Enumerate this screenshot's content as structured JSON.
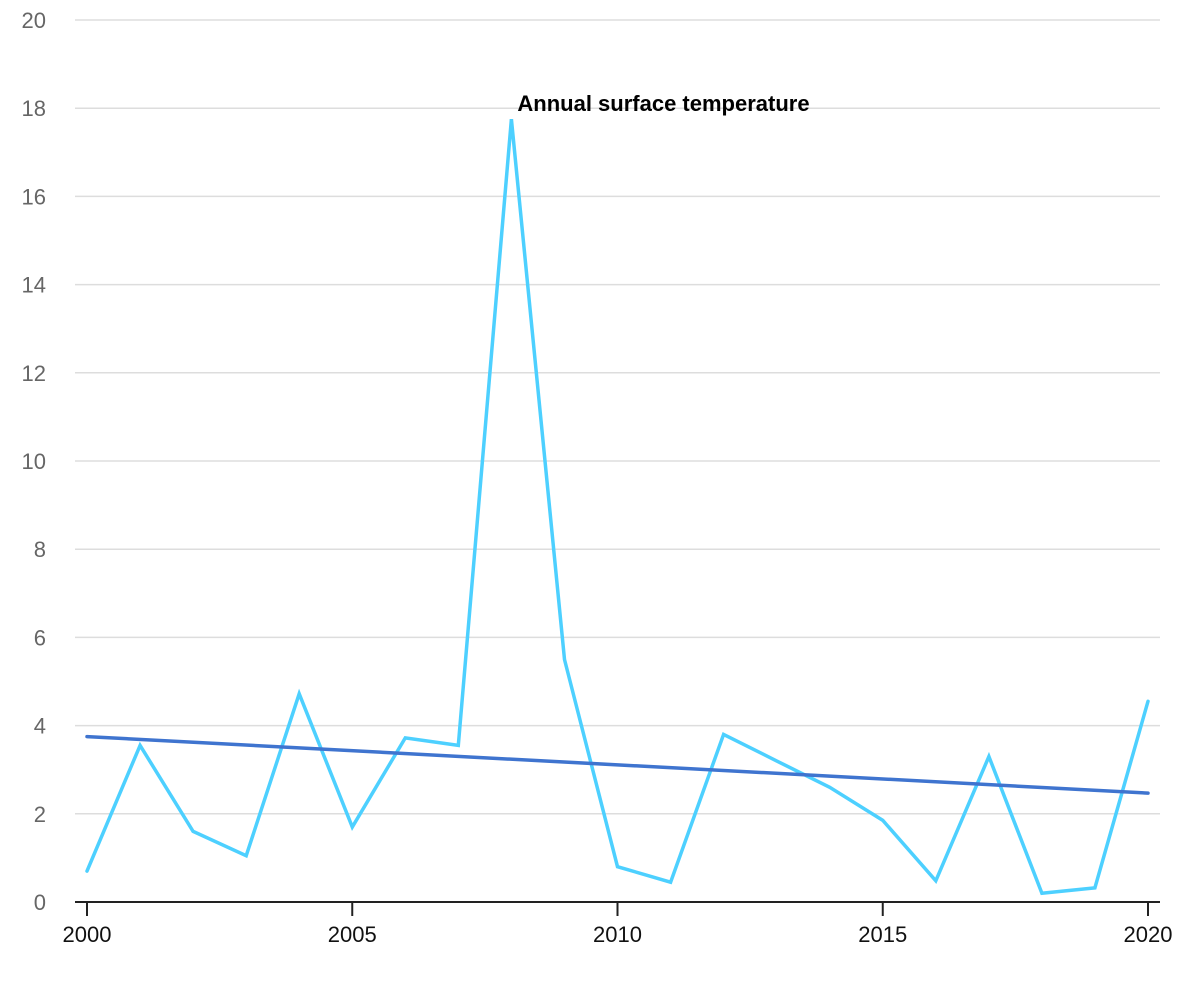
{
  "chart_data": {
    "type": "line",
    "title": "",
    "xlabel": "",
    "ylabel": "",
    "xlim": [
      2000,
      2020
    ],
    "ylim": [
      0,
      20
    ],
    "y_ticks": [
      0,
      2,
      4,
      6,
      8,
      10,
      12,
      14,
      16,
      18,
      20
    ],
    "x_ticks": [
      2000,
      2005,
      2010,
      2015,
      2020
    ],
    "grid": "horizontal",
    "series": [
      {
        "name": "Annual surface temperature",
        "color": "#4dd0ff",
        "x": [
          2000,
          2001,
          2002,
          2003,
          2004,
          2005,
          2006,
          2007,
          2008,
          2009,
          2010,
          2011,
          2012,
          2013,
          2014,
          2015,
          2016,
          2017,
          2018,
          2019,
          2020
        ],
        "y": [
          0.7,
          3.55,
          1.6,
          1.05,
          4.72,
          1.7,
          3.72,
          3.55,
          17.75,
          5.5,
          0.8,
          0.45,
          3.8,
          3.2,
          2.6,
          1.85,
          0.48,
          3.3,
          0.2,
          0.32,
          4.55
        ]
      },
      {
        "name": "",
        "color": "#3f74cf",
        "x": [
          2000,
          2020
        ],
        "y": [
          3.75,
          2.47
        ]
      }
    ],
    "annotations": [
      {
        "text": "Annual surface temperature",
        "x": 2008,
        "y": 17.75
      }
    ]
  }
}
